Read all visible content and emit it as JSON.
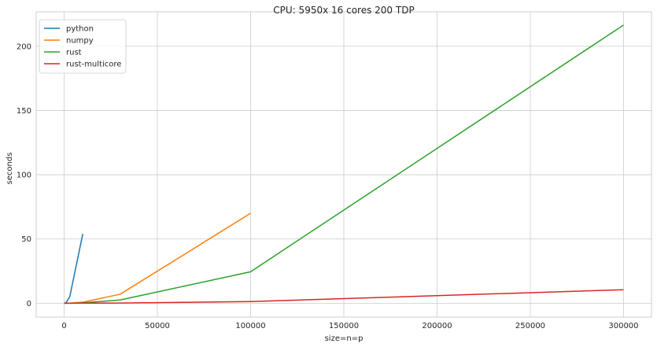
{
  "chart_data": {
    "type": "line",
    "title": "CPU: 5950x 16 cores 200 TDP",
    "xlabel": "size=n=p",
    "ylabel": "seconds",
    "xlim": [
      -15000,
      315000
    ],
    "ylim": [
      -10.8,
      226.8
    ],
    "xticks": [
      0,
      50000,
      100000,
      150000,
      200000,
      250000,
      300000
    ],
    "xtick_labels": [
      "0",
      "50000",
      "100000",
      "150000",
      "200000",
      "250000",
      "300000"
    ],
    "yticks": [
      0,
      50,
      100,
      150,
      200
    ],
    "ytick_labels": [
      "0",
      "50",
      "100",
      "150",
      "200"
    ],
    "grid": true,
    "legend_position": "top-left",
    "series": [
      {
        "name": "python",
        "color": "#1f77b4",
        "x": [
          100,
          1000,
          3000,
          10000
        ],
        "y": [
          0.0,
          0.5,
          5.0,
          54.0
        ]
      },
      {
        "name": "numpy",
        "color": "#ff7f0e",
        "x": [
          100,
          1000,
          3000,
          10000,
          30000,
          100000
        ],
        "y": [
          0.0,
          0.0,
          0.1,
          0.8,
          7.0,
          70.0
        ]
      },
      {
        "name": "rust",
        "color": "#2ca02c",
        "x": [
          100,
          1000,
          3000,
          10000,
          30000,
          100000,
          300000
        ],
        "y": [
          0.0,
          0.0,
          0.0,
          0.3,
          2.5,
          24.5,
          216.5
        ]
      },
      {
        "name": "rust-multicore",
        "color": "#d62728",
        "x": [
          100,
          1000,
          3000,
          10000,
          30000,
          100000,
          300000
        ],
        "y": [
          0.0,
          0.0,
          0.0,
          0.05,
          0.15,
          1.3,
          10.5
        ]
      }
    ]
  }
}
